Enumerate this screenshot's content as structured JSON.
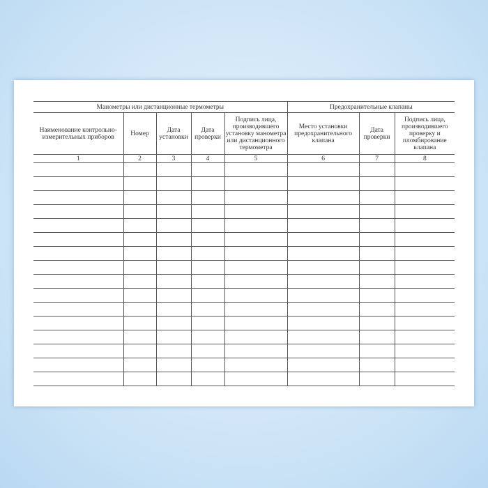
{
  "table": {
    "groups": [
      "Манометры или дистанционные термометры",
      "Предохранительные клапаны"
    ],
    "headers": [
      "Наименование контрольно-измерительных приборов",
      "Номер",
      "Дата установки",
      "Дата проверки",
      "Подпись лица, производившего установку манометра или дистанционного термометра",
      "Место установки предохранительного клапана",
      "Дата проверки",
      "Подпись лица, производившего проверку и пломбирование клапана"
    ],
    "numbers": [
      "1",
      "2",
      "3",
      "4",
      "5",
      "6",
      "7",
      "8"
    ],
    "empty_rows": 16
  }
}
